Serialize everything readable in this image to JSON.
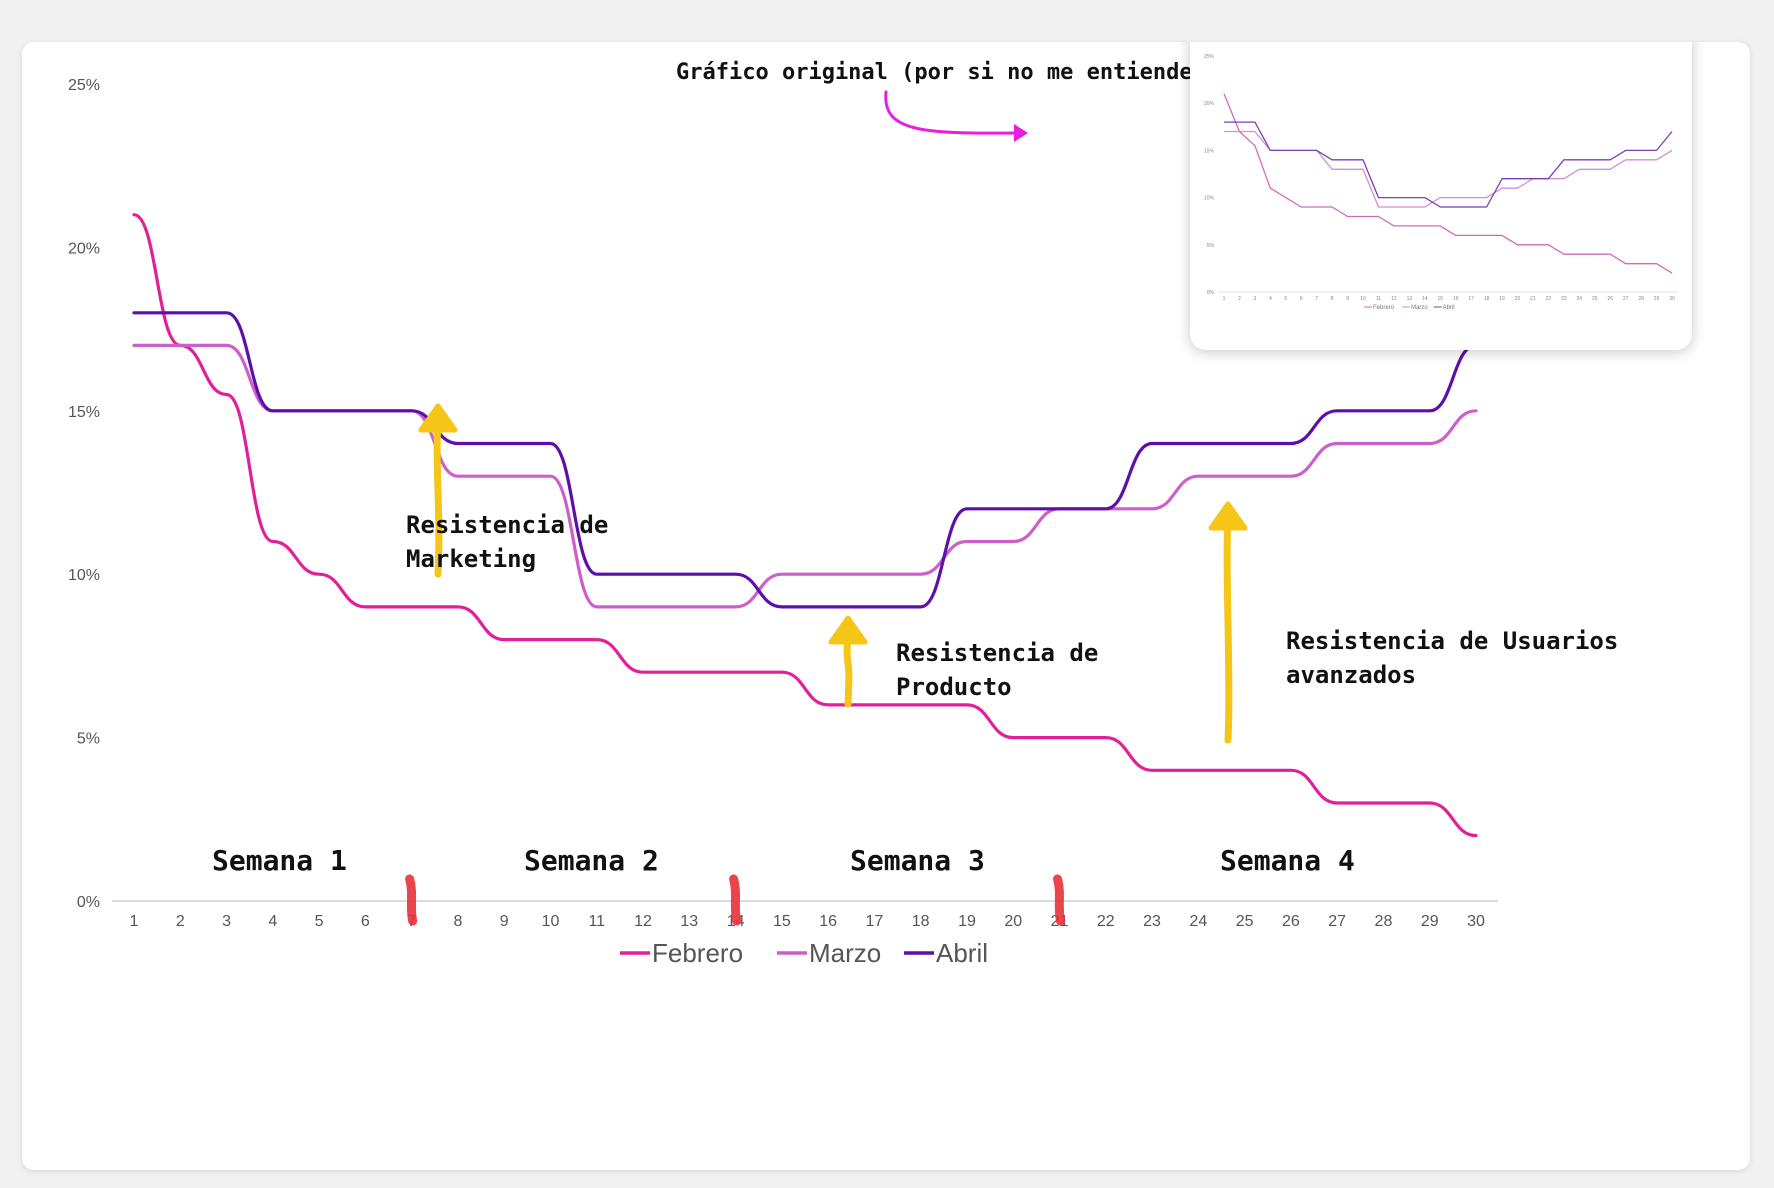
{
  "chart_data": [
    {
      "type": "line",
      "x": [
        1,
        2,
        3,
        4,
        5,
        6,
        7,
        8,
        9,
        10,
        11,
        12,
        13,
        14,
        15,
        16,
        17,
        18,
        19,
        20,
        21,
        22,
        23,
        24,
        25,
        26,
        27,
        28,
        29,
        30
      ],
      "series": [
        {
          "name": "Febrero",
          "color": "#e21f9a",
          "values": [
            21,
            17,
            15.5,
            11,
            10,
            9,
            9,
            9,
            8,
            8,
            8,
            7,
            7,
            7,
            7,
            6,
            6,
            6,
            6,
            5,
            5,
            5,
            4,
            4,
            4,
            4,
            3,
            3,
            3,
            2
          ]
        },
        {
          "name": "Marzo",
          "color": "#cd5fca",
          "values": [
            17,
            17,
            17,
            15,
            15,
            15,
            15,
            13,
            13,
            13,
            9,
            9,
            9,
            9,
            10,
            10,
            10,
            10,
            11,
            11,
            12,
            12,
            12,
            13,
            13,
            13,
            14,
            14,
            14,
            15
          ]
        },
        {
          "name": "Abril",
          "color": "#5d0fa8",
          "values": [
            18,
            18,
            18,
            15,
            15,
            15,
            15,
            14,
            14,
            14,
            10,
            10,
            10,
            10,
            9,
            9,
            9,
            9,
            12,
            12,
            12,
            12,
            14,
            14,
            14,
            14,
            15,
            15,
            15,
            17
          ]
        }
      ],
      "y_ticks": [
        "0%",
        "5%",
        "10%",
        "15%",
        "20%",
        "25%"
      ],
      "ylim": [
        0,
        25
      ],
      "grid": false,
      "legend_position": "bottom",
      "week_markers": [
        7,
        14,
        21
      ],
      "marker_color": "#e8303a"
    },
    {
      "type": "line",
      "x": [
        1,
        2,
        3,
        4,
        5,
        6,
        7,
        8,
        9,
        10,
        11,
        12,
        13,
        14,
        15,
        16,
        17,
        18,
        19,
        20,
        21,
        22,
        23,
        24,
        25,
        26,
        27,
        28,
        29,
        30
      ],
      "series": [
        {
          "name": "Febrero",
          "values": [
            21,
            17,
            15.5,
            11,
            10,
            9,
            9,
            9,
            8,
            8,
            8,
            7,
            7,
            7,
            7,
            6,
            6,
            6,
            6,
            5,
            5,
            5,
            4,
            4,
            4,
            4,
            3,
            3,
            3,
            2
          ]
        },
        {
          "name": "Marzo",
          "values": [
            17,
            17,
            17,
            15,
            15,
            15,
            15,
            13,
            13,
            13,
            9,
            9,
            9,
            9,
            10,
            10,
            10,
            10,
            11,
            11,
            12,
            12,
            12,
            13,
            13,
            13,
            14,
            14,
            14,
            15
          ]
        },
        {
          "name": "Abril",
          "values": [
            18,
            18,
            18,
            15,
            15,
            15,
            15,
            14,
            14,
            14,
            10,
            10,
            10,
            10,
            9,
            9,
            9,
            9,
            12,
            12,
            12,
            12,
            14,
            14,
            14,
            14,
            15,
            15,
            15,
            17
          ]
        }
      ],
      "y_ticks": [
        "0%",
        "5%",
        "10%",
        "15%",
        "20%",
        "25%"
      ],
      "ylim": [
        0,
        25
      ],
      "legend_position": "bottom"
    }
  ],
  "annotations": {
    "inset_caption": "Gráfico original (por si no me entiendes)",
    "marketing_line1": "Resistencia de",
    "marketing_line2": "Marketing",
    "producto_line1": "Resistencia de",
    "producto_line2": "Producto",
    "usuarios_line1": "Resistencia de Usuarios",
    "usuarios_line2": "avanzados",
    "arrow_color": "#f5c518",
    "caption_arrow_color": "#e81ee0"
  },
  "weeks": [
    "Semana 1",
    "Semana 2",
    "Semana 3",
    "Semana 4"
  ]
}
